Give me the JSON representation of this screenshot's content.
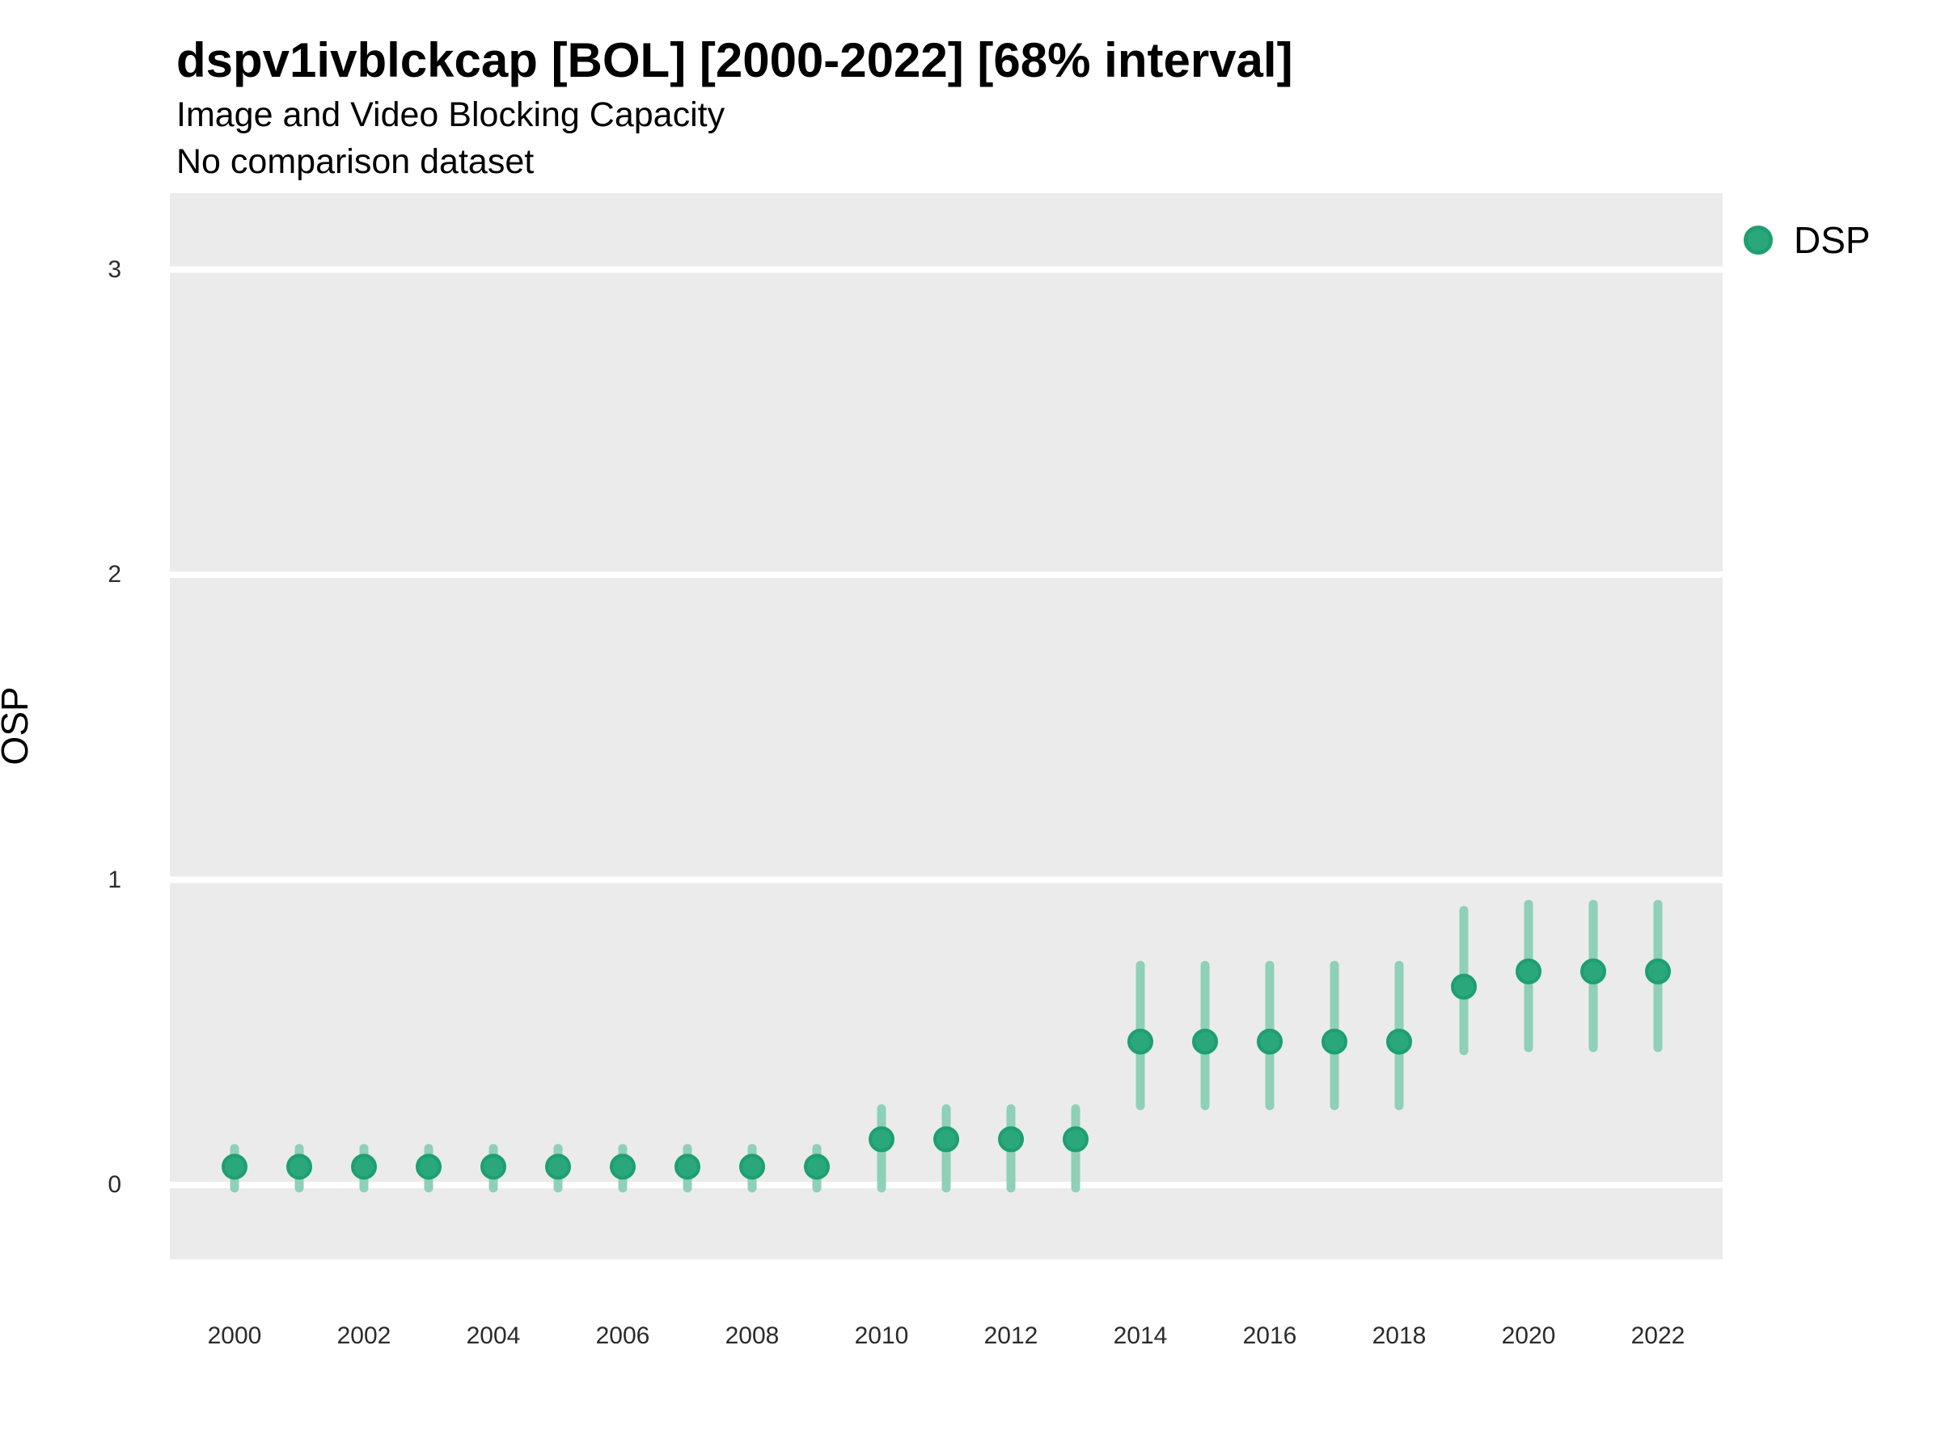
{
  "header": {
    "title": "dspv1ivblckcap [BOL] [2000-2022] [68% interval]",
    "subtitle1": "Image and Video Blocking Capacity",
    "subtitle2": "No comparison dataset"
  },
  "legend": {
    "items": [
      {
        "label": "DSP",
        "marker": "circle-icon"
      }
    ],
    "position": "right"
  },
  "y_axis": {
    "label": "OSP",
    "ticks": [
      "3",
      "2",
      "1",
      "0"
    ],
    "tick_values": [
      3,
      2,
      1,
      0
    ]
  },
  "x_axis": {
    "ticks": [
      "2000",
      "2002",
      "2004",
      "2006",
      "2008",
      "2010",
      "2012",
      "2014",
      "2016",
      "2018",
      "2020",
      "2022"
    ],
    "tick_values": [
      2000,
      2002,
      2004,
      2006,
      2008,
      2010,
      2012,
      2014,
      2016,
      2018,
      2020,
      2022
    ]
  },
  "chart_data": {
    "type": "scatter",
    "title": "dspv1ivblckcap [BOL] [2000-2022] [68% interval]",
    "subtitle": "Image and Video Blocking Capacity",
    "note": "No comparison dataset",
    "interval_label": "68% interval",
    "xlabel": "",
    "ylabel": "OSP",
    "xlim": [
      1999,
      2023
    ],
    "ylim": [
      -0.24,
      3.25
    ],
    "y_gridlines": [
      0,
      1,
      2,
      3
    ],
    "grid": "major white lines on grey panel",
    "legend_position": "right",
    "x": [
      2000,
      2001,
      2002,
      2003,
      2004,
      2005,
      2006,
      2007,
      2008,
      2009,
      2010,
      2011,
      2012,
      2013,
      2014,
      2015,
      2016,
      2017,
      2018,
      2019,
      2020,
      2021,
      2022
    ],
    "series": [
      {
        "name": "DSP",
        "values": [
          0.06,
          0.06,
          0.06,
          0.06,
          0.06,
          0.06,
          0.06,
          0.06,
          0.06,
          0.06,
          0.15,
          0.15,
          0.15,
          0.15,
          0.47,
          0.47,
          0.47,
          0.47,
          0.47,
          0.65,
          0.7,
          0.7,
          0.7
        ],
        "interval_low": [
          -0.01,
          -0.01,
          -0.01,
          -0.01,
          -0.01,
          -0.01,
          -0.01,
          -0.01,
          -0.01,
          -0.01,
          -0.01,
          -0.01,
          -0.01,
          -0.01,
          0.26,
          0.26,
          0.26,
          0.26,
          0.26,
          0.44,
          0.45,
          0.45,
          0.45
        ],
        "interval_high": [
          0.12,
          0.12,
          0.12,
          0.12,
          0.12,
          0.12,
          0.12,
          0.12,
          0.12,
          0.12,
          0.25,
          0.25,
          0.25,
          0.25,
          0.72,
          0.72,
          0.72,
          0.72,
          0.72,
          0.9,
          0.92,
          0.92,
          0.92
        ]
      }
    ]
  },
  "colors": {
    "point_fill": "#2aa77b",
    "point_stroke": "#1d9f71",
    "error_bar": "#8ed0b8",
    "panel_background": "#ebebeb",
    "gridline": "#ffffff",
    "text": "#000000",
    "tick_text": "#2b2b2b",
    "page_background": "#ffffff"
  }
}
